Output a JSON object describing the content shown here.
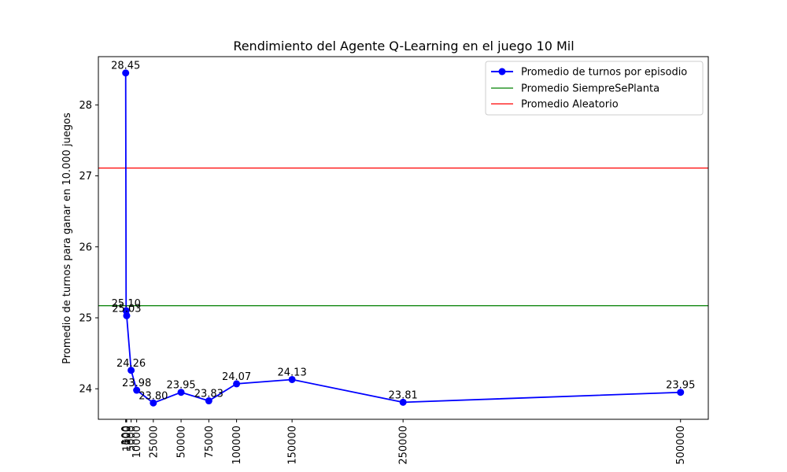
{
  "chart_data": {
    "type": "line",
    "title": "Rendimiento del Agente Q-Learning en el juego 10 Mil",
    "xlabel": "",
    "ylabel": "Promedio de turnos para ganar en 10.000 juegos",
    "xlim": [
      -24500,
      525000
    ],
    "ylim": [
      23.57,
      28.68
    ],
    "yticks": [
      24,
      25,
      26,
      27,
      28
    ],
    "x": [
      100,
      500,
      1000,
      5000,
      10000,
      25000,
      50000,
      75000,
      100000,
      150000,
      250000,
      500000
    ],
    "xtick_labels": [
      "100",
      "500",
      "1000",
      "5000",
      "10000",
      "25000",
      "50000",
      "75000",
      "100000",
      "150000",
      "250000",
      "500000"
    ],
    "series": [
      {
        "name": "Promedio de turnos por episodio",
        "color": "#0000ff",
        "values": [
          28.45,
          25.1,
          25.03,
          24.26,
          23.98,
          23.8,
          23.95,
          23.83,
          24.07,
          24.13,
          23.81,
          23.95
        ],
        "value_labels": [
          "28.45",
          "25.10",
          "25.03",
          "24.26",
          "23.98",
          "23.80",
          "23.95",
          "23.83",
          "24.07",
          "24.13",
          "23.81",
          "23.95"
        ]
      }
    ],
    "reference_lines": [
      {
        "name": "Promedio SiempreSePlanta",
        "color": "#008000",
        "y": 25.17
      },
      {
        "name": "Promedio Aleatorio",
        "color": "#ff0000",
        "y": 27.11
      }
    ],
    "legend": "top-right",
    "grid": false
  }
}
